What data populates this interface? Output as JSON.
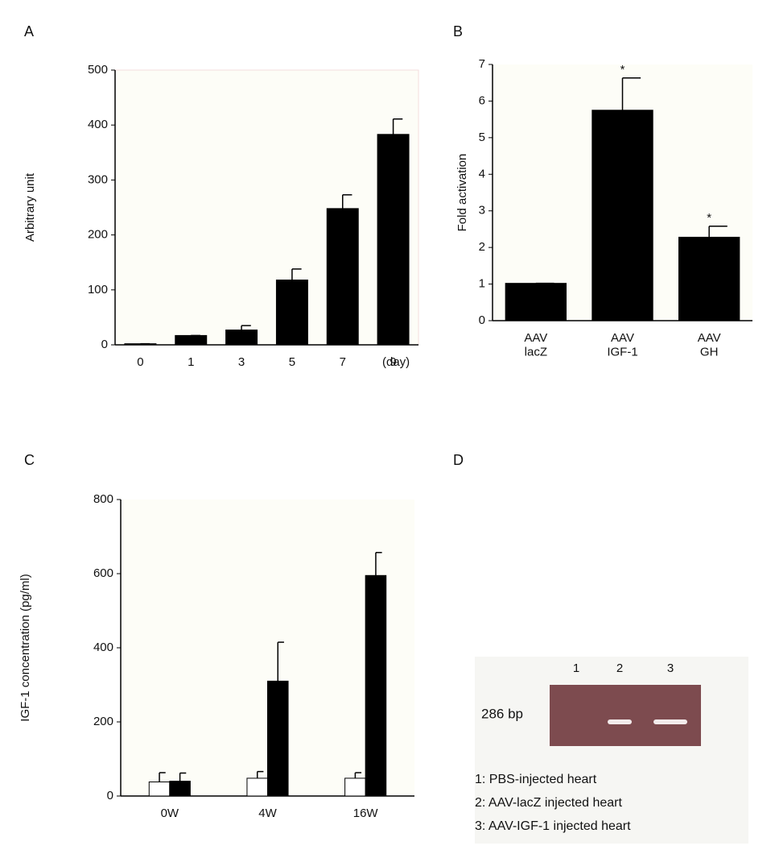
{
  "chart_data": [
    {
      "type": "bar",
      "panel_label": "A",
      "ylabel": "Arbitrary unit",
      "x_unit_label": "(day)",
      "categories": [
        "0",
        "1",
        "3",
        "5",
        "7",
        "9"
      ],
      "values": [
        2,
        17,
        27,
        118,
        248,
        383
      ],
      "errors": [
        0,
        0,
        8,
        20,
        25,
        28
      ],
      "color": "#000000",
      "ylim": [
        0,
        500
      ],
      "yticks": [
        0,
        100,
        200,
        300,
        400,
        500
      ]
    },
    {
      "type": "bar",
      "panel_label": "B",
      "ylabel": "Fold activation",
      "categories": [
        "AAV\nlacZ",
        "AAV\nIGF-1",
        "AAV\nGH"
      ],
      "values": [
        1.02,
        5.75,
        2.28
      ],
      "errors": [
        0,
        0.88,
        0.3
      ],
      "significance": [
        null,
        "*",
        "*"
      ],
      "color": "#000000",
      "ylim": [
        0,
        7
      ],
      "yticks": [
        0,
        1,
        2,
        3,
        4,
        5,
        6,
        7
      ]
    },
    {
      "type": "bar",
      "panel_label": "C",
      "ylabel": "IGF-1 concentration (pg/ml)",
      "categories": [
        "0W",
        "4W",
        "16W"
      ],
      "series": [
        {
          "color": "#ffffff",
          "values": [
            38,
            48,
            48
          ],
          "errors": [
            25,
            18,
            15
          ]
        },
        {
          "color": "#000000",
          "values": [
            40,
            310,
            595
          ],
          "errors": [
            22,
            105,
            62
          ]
        }
      ],
      "ylim": [
        0,
        800
      ],
      "yticks": [
        0,
        200,
        400,
        600,
        800
      ]
    }
  ],
  "panel_d": {
    "panel_label": "D",
    "lanes": [
      "1",
      "2",
      "3"
    ],
    "band_label": "286 bp",
    "legend": [
      "1: PBS-injected heart",
      "2: AAV-lacZ injected heart",
      "3: AAV-IGF-1 injected heart"
    ]
  }
}
